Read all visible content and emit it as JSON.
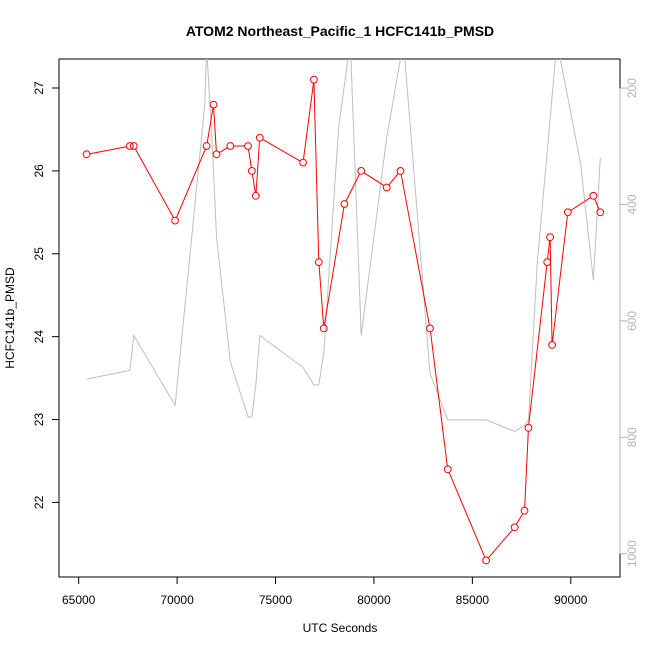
{
  "chart_data": {
    "type": "line",
    "title": "ATOM2 Northeast_Pacific_1 HCFC141b_PMSD",
    "xlabel": "UTC Seconds",
    "ylabel": "HCFC141b_PMSD",
    "xlim": [
      64000,
      92500
    ],
    "ylim": [
      21.1,
      27.35
    ],
    "y2lim": [
      1040,
      150
    ],
    "grid": false,
    "x_ticks": [
      65000,
      70000,
      75000,
      80000,
      85000,
      90000
    ],
    "y_ticks": [
      22,
      23,
      24,
      25,
      26,
      27
    ],
    "y2_ticks": [
      200,
      400,
      600,
      800,
      1000
    ],
    "colors": {
      "series": "#ff0000",
      "secondary": "#bebebe",
      "axis": "#000000",
      "axis2": "#b3b3b3"
    },
    "series": [
      {
        "axis": "left",
        "marker": "circle",
        "x": [
          65400,
          67600,
          67800,
          69900,
          71500,
          71850,
          72000,
          72700,
          73600,
          73800,
          74000,
          74200,
          76400,
          76950,
          77200,
          77450,
          78500,
          79350,
          80650,
          81350,
          82850,
          83750,
          85700,
          87150,
          87650,
          87850,
          88800,
          88950,
          89050,
          89850,
          91150,
          91500
        ],
        "y": [
          26.2,
          26.3,
          26.3,
          25.4,
          26.3,
          26.8,
          26.2,
          26.3,
          26.3,
          26.0,
          25.7,
          26.4,
          26.1,
          27.1,
          24.9,
          24.1,
          25.6,
          26.0,
          25.8,
          26.0,
          24.1,
          22.4,
          21.3,
          21.7,
          21.9,
          22.9,
          24.9,
          25.2,
          23.9,
          25.5,
          25.7,
          25.5
        ]
      },
      {
        "axis": "right",
        "marker": "none",
        "x": [
          65400,
          67600,
          67800,
          69900,
          71400,
          71500,
          71800,
          72000,
          72700,
          73600,
          73800,
          74000,
          74200,
          76400,
          76950,
          77200,
          77450,
          78200,
          78800,
          79350,
          80650,
          81500,
          82850,
          83750,
          85700,
          87150,
          87650,
          87850,
          88300,
          89300,
          90500,
          91150,
          91500
        ],
        "y": [
          700,
          685,
          625,
          745,
          230,
          130,
          305,
          455,
          670,
          765,
          765,
          710,
          625,
          680,
          710,
          710,
          655,
          270,
          120,
          625,
          285,
          120,
          690,
          770,
          770,
          790,
          780,
          770,
          500,
          120,
          330,
          530,
          320
        ]
      }
    ]
  }
}
